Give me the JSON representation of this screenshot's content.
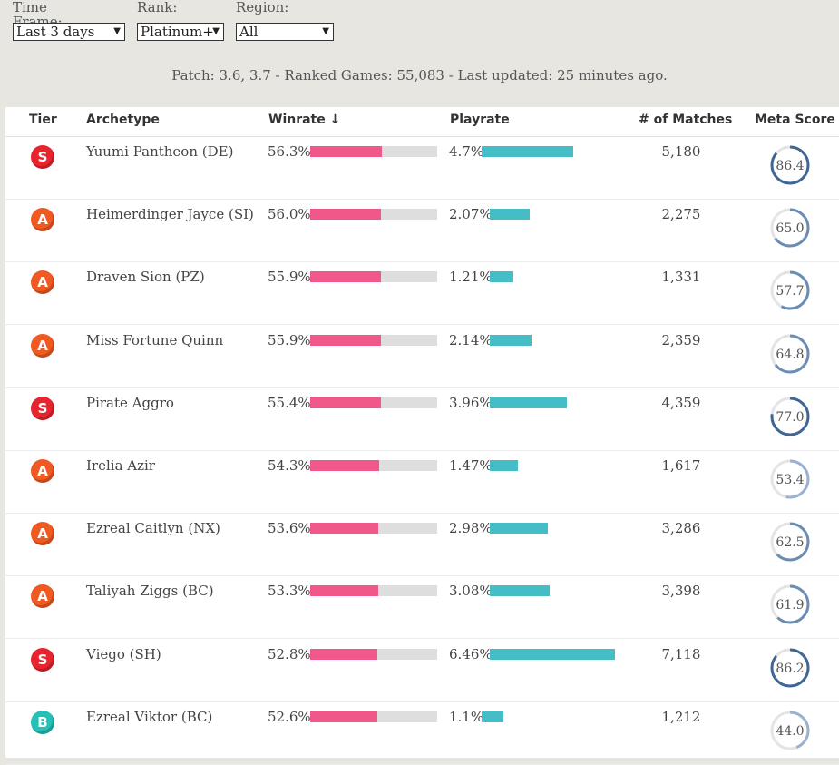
{
  "filters": {
    "time_frame_label": "Time Frame:",
    "time_frame_value": "Last 3 days",
    "rank_label": "Rank:",
    "rank_value": "Platinum+",
    "region_label": "Region:",
    "region_value": "All"
  },
  "patch_info": "Patch: 3.6, 3.7 - Ranked Games: 55,083 - Last updated: 25 minutes ago.",
  "columns": {
    "tier": "Tier",
    "archetype": "Archetype",
    "winrate": "Winrate ↓",
    "playrate": "Playrate",
    "matches": "# of Matches",
    "meta_score": "Meta Score"
  },
  "colors": {
    "tier_S": "#e8242f",
    "tier_A": "#f05a22",
    "tier_B": "#22c3b6",
    "winrate_bar": "#f0588a",
    "playrate_bar": "#45bdc6"
  },
  "rows": [
    {
      "tier": "S",
      "archetype": "Yuumi Pantheon (DE)",
      "winrate": "56.3%",
      "winrate_value": 56.3,
      "playrate": "4.7%",
      "playrate_value": 4.7,
      "matches": "5,180",
      "meta_score": "86.4",
      "meta_value": 86.4
    },
    {
      "tier": "A",
      "archetype": "Heimerdinger Jayce (SI)",
      "winrate": "56.0%",
      "winrate_value": 56.0,
      "playrate": "2.07%",
      "playrate_value": 2.07,
      "matches": "2,275",
      "meta_score": "65.0",
      "meta_value": 65.0
    },
    {
      "tier": "A",
      "archetype": "Draven Sion (PZ)",
      "winrate": "55.9%",
      "winrate_value": 55.9,
      "playrate": "1.21%",
      "playrate_value": 1.21,
      "matches": "1,331",
      "meta_score": "57.7",
      "meta_value": 57.7
    },
    {
      "tier": "A",
      "archetype": "Miss Fortune Quinn",
      "winrate": "55.9%",
      "winrate_value": 55.9,
      "playrate": "2.14%",
      "playrate_value": 2.14,
      "matches": "2,359",
      "meta_score": "64.8",
      "meta_value": 64.8
    },
    {
      "tier": "S",
      "archetype": "Pirate Aggro",
      "winrate": "55.4%",
      "winrate_value": 55.4,
      "playrate": "3.96%",
      "playrate_value": 3.96,
      "matches": "4,359",
      "meta_score": "77.0",
      "meta_value": 77.0
    },
    {
      "tier": "A",
      "archetype": "Irelia Azir",
      "winrate": "54.3%",
      "winrate_value": 54.3,
      "playrate": "1.47%",
      "playrate_value": 1.47,
      "matches": "1,617",
      "meta_score": "53.4",
      "meta_value": 53.4
    },
    {
      "tier": "A",
      "archetype": "Ezreal Caitlyn (NX)",
      "winrate": "53.6%",
      "winrate_value": 53.6,
      "playrate": "2.98%",
      "playrate_value": 2.98,
      "matches": "3,286",
      "meta_score": "62.5",
      "meta_value": 62.5
    },
    {
      "tier": "A",
      "archetype": "Taliyah Ziggs (BC)",
      "winrate": "53.3%",
      "winrate_value": 53.3,
      "playrate": "3.08%",
      "playrate_value": 3.08,
      "matches": "3,398",
      "meta_score": "61.9",
      "meta_value": 61.9
    },
    {
      "tier": "S",
      "archetype": "Viego (SH)",
      "winrate": "52.8%",
      "winrate_value": 52.8,
      "playrate": "6.46%",
      "playrate_value": 6.46,
      "matches": "7,118",
      "meta_score": "86.2",
      "meta_value": 86.2
    },
    {
      "tier": "B",
      "archetype": "Ezreal Viktor (BC)",
      "winrate": "52.6%",
      "winrate_value": 52.6,
      "playrate": "1.1%",
      "playrate_value": 1.1,
      "matches": "1,212",
      "meta_score": "44.0",
      "meta_value": 44.0
    }
  ]
}
